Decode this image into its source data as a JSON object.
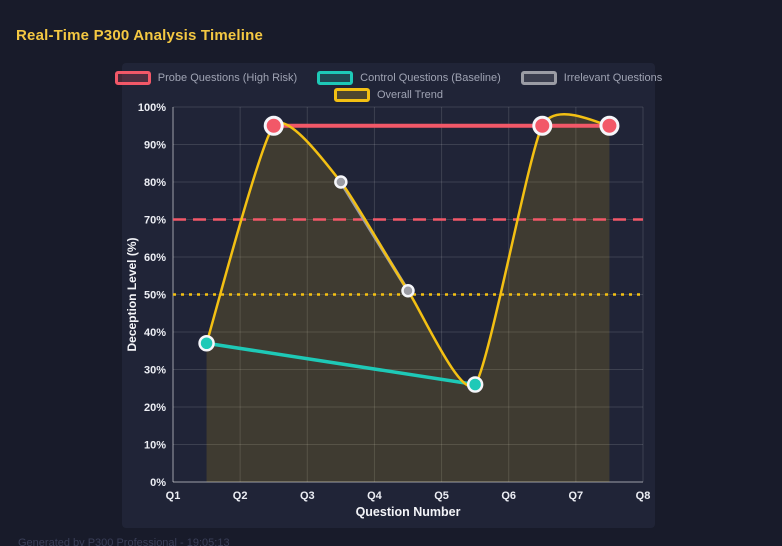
{
  "page": {
    "title": "Real-Time P300 Analysis Timeline",
    "footer": "Generated by P300 Professional - 19:05:13",
    "background_color": "#181b2a",
    "panel_color": "#202437",
    "title_color": "#f4c842"
  },
  "chart_data": {
    "type": "line",
    "title": "Real-Time P300 Analysis Timeline",
    "xlabel": "Question Number",
    "ylabel": "Deception Level (%)",
    "xlim": [
      1,
      8
    ],
    "ylim": [
      0,
      100
    ],
    "grid": true,
    "legend_position": "top",
    "x_ticks": [
      {
        "value": 1,
        "label": "Q1"
      },
      {
        "value": 2,
        "label": "Q2"
      },
      {
        "value": 3,
        "label": "Q3"
      },
      {
        "value": 4,
        "label": "Q4"
      },
      {
        "value": 5,
        "label": "Q5"
      },
      {
        "value": 6,
        "label": "Q6"
      },
      {
        "value": 7,
        "label": "Q7"
      },
      {
        "value": 8,
        "label": "Q8"
      }
    ],
    "y_ticks": [
      {
        "value": 0,
        "label": "0%"
      },
      {
        "value": 10,
        "label": "10%"
      },
      {
        "value": 20,
        "label": "20%"
      },
      {
        "value": 30,
        "label": "30%"
      },
      {
        "value": 40,
        "label": "40%"
      },
      {
        "value": 50,
        "label": "50%"
      },
      {
        "value": 60,
        "label": "60%"
      },
      {
        "value": 70,
        "label": "70%"
      },
      {
        "value": 80,
        "label": "80%"
      },
      {
        "value": 90,
        "label": "90%"
      },
      {
        "value": 100,
        "label": "100%"
      }
    ],
    "series": [
      {
        "id": "probe",
        "name": "Probe Questions (High Risk)",
        "color": "#f25868",
        "line_width": 4,
        "marker_radius": 8.5,
        "marker_stroke_width": 3,
        "smooth": false,
        "fill": false,
        "points": [
          [
            2.5,
            95
          ],
          [
            6.5,
            95
          ],
          [
            7.5,
            95
          ]
        ]
      },
      {
        "id": "control",
        "name": "Control Questions (Baseline)",
        "color": "#1ec9b7",
        "line_width": 3.5,
        "marker_radius": 7,
        "marker_stroke_width": 2.5,
        "smooth": false,
        "fill": false,
        "points": [
          [
            1.5,
            37
          ],
          [
            5.5,
            26
          ]
        ]
      },
      {
        "id": "irrelevant",
        "name": "Irrelevant Questions",
        "color": "#9b9ca4",
        "line_width": 3.5,
        "marker_radius": 5.5,
        "marker_stroke_width": 2.5,
        "smooth": false,
        "fill": false,
        "points": [
          [
            3.5,
            80
          ],
          [
            4.5,
            51
          ]
        ]
      },
      {
        "id": "trend",
        "name": "Overall Trend",
        "color": "#f3c013",
        "line_width": 2.5,
        "marker_radius": 0,
        "marker_stroke_width": 0,
        "smooth": true,
        "fill": true,
        "fill_opacity": 0.15,
        "points": [
          [
            1.5,
            37
          ],
          [
            2.5,
            95
          ],
          [
            3.5,
            80
          ],
          [
            4.5,
            51
          ],
          [
            5.5,
            26
          ],
          [
            6.5,
            95
          ],
          [
            7.5,
            95
          ]
        ]
      }
    ],
    "reference_lines": [
      {
        "y": 70,
        "color": "#f25868",
        "style": "dashed"
      },
      {
        "y": 50,
        "color": "#f3c013",
        "style": "dotted"
      }
    ],
    "legend_rows": [
      [
        "probe",
        "control",
        "irrelevant"
      ],
      [
        "trend"
      ]
    ],
    "draw_order": {
      "lines": [
        "control",
        "irrelevant",
        "probe",
        "trend"
      ],
      "markers": [
        "irrelevant",
        "control",
        "probe"
      ]
    }
  }
}
